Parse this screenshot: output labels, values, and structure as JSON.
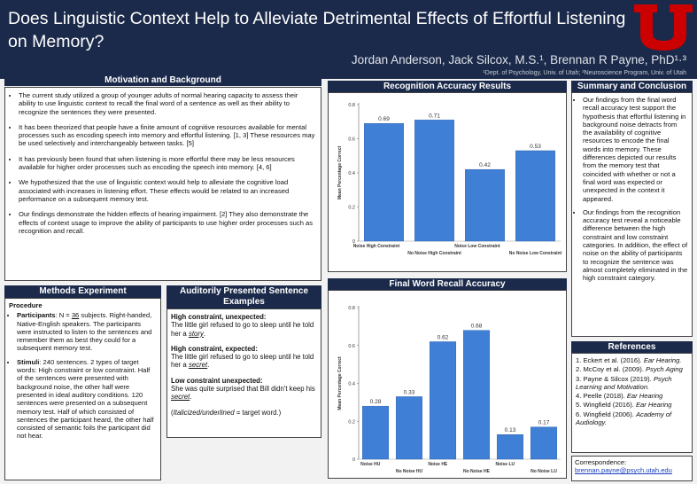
{
  "header": {
    "title": "Does Linguistic Context Help to Alleviate Detrimental Effects of Effortful Listening on Memory?",
    "authors": "Jordan Anderson, Jack Silcox, M.S.¹, Brennan R Payne, PhD¹·³",
    "affiliations": "¹Dept. of Psychology, Univ. of Utah;  ³Neuroscience Program, Univ. of Utah",
    "logo_color": "#cc0000"
  },
  "motivation": {
    "heading": "Motivation and Background",
    "items": [
      "The current study utilized a group of younger adults of normal hearing capacity to assess their ability to use linguistic context to recall the final word of a sentence as well as their ability to recognize the sentences they were presented.",
      "It has been theorized that people have a finite amount of cognitive resources available for mental processes such as encoding speech into memory and effortful listening. [1, 3] These resources may be used selectively and interchangeably between tasks. [5]",
      "It has previously been found that when listening is more effortful there may be less resources available for higher order processes such as encoding the speech into memory. [4, 6]",
      "We hypothesized that the use of linguistic context would help to alleviate the cognitive load associated with increases in listening effort. These effects would be related to an increased performance on a subsequent memory test.",
      "Our findings demonstrate the hidden effects of hearing impairment. [2] They also demonstrate the effects of context usage to improve the ability of participants to use higher order processes such as recognition and recall."
    ]
  },
  "methods": {
    "heading": "Methods Experiment",
    "procedure_label": "Procedure",
    "participants_label": "Participants",
    "participants_n_prefix": ": N = ",
    "participants_n": "36",
    "participants_text": " subjects. Right-handed, Native-English speakers. The participants were instructed to listen to the sentences and remember them as best they could for a subsequent memory test.",
    "stimuli_label": "Stimuli",
    "stimuli_text": ": 240 sentences. 2 types of target words: High constraint or low constraint. Half of the sentences were presented with background noise, the other half were presented in ideal auditory conditions. 120 sentences were presented on a subsequent memory test. Half of which consisted of sentences the participant heard, the other half consisted of semantic foils the participant did not hear."
  },
  "examples": {
    "heading": "Auditorily Presented Sentence Examples",
    "items": [
      {
        "label": "High constraint, unexpected:",
        "text": "The little girl refused to go to sleep until he told her a ",
        "target": "story",
        "end": "."
      },
      {
        "label": "High constraint, expected:",
        "text": "The little girl refused to go to sleep until he told her a ",
        "target": "secret",
        "end": "."
      },
      {
        "label": "Low constraint unexpected:",
        "text": "She was quite surprised that Bill didn't keep his ",
        "target": "secret",
        "end": "."
      }
    ],
    "note_prefix": "(",
    "note_emph": "Italicized/underlined",
    "note_suffix": " = target word.)"
  },
  "recognition": {
    "heading": "Recognition Accuracy Results"
  },
  "recall": {
    "heading": "Final Word Recall Accuracy"
  },
  "summary": {
    "heading": "Summary and Conclusion",
    "items": [
      "Our findings from the final word recall accuracy test support the hypothesis that effortful listening in background noise detracts from the availability of cognitive resources to encode the final words into memory. These differences depicted our results from the memory test that coincided with whether or not a final word was expected or unexpected in the context it appeared.",
      "Our findings from the recognition accuracy test reveal a noticeable difference between the high constraint and low constraint categories. In addition, the effect of noise on the ability of participants to recognize the sentence was almost completely eliminated in the high constraint category."
    ]
  },
  "references": {
    "heading": "References",
    "items": [
      {
        "num": "1.",
        "authors": "Eckert et al. (2016). ",
        "journal": "Ear Hearing."
      },
      {
        "num": "2.",
        "authors": "McCoy et al. (2009). ",
        "journal": "Psych Aging"
      },
      {
        "num": "3.",
        "authors": "Payne & Silcox (2019). ",
        "journal": "Psych Learning and Motivation."
      },
      {
        "num": "4.",
        "authors": "Peelle (2018). ",
        "journal": "Ear Hearing"
      },
      {
        "num": "5.",
        "authors": "Wingfield (2016). ",
        "journal": "Ear Hearing"
      },
      {
        "num": "6.",
        "authors": "Wingfield (2006). ",
        "journal": "Academy of Audiology."
      }
    ]
  },
  "correspondence": {
    "label": "Correspondence:",
    "email": "brennan.payne@psych.utah.edu"
  },
  "chart_data": [
    {
      "type": "bar",
      "ylabel": "Mean Percentage Correct",
      "categories": [
        "Noise High Constraint",
        "No Noise High Constraint",
        "Noise Low Constraint",
        "No Noise Low Constraint"
      ],
      "values": [
        0.69,
        0.71,
        0.42,
        0.53
      ],
      "value_labels": [
        "0.69",
        "0.71",
        "0.42",
        "0.53"
      ],
      "ylim": [
        0,
        0.8
      ],
      "yticks": [
        "0",
        "0.2",
        "0.4",
        "0.6",
        "0.8"
      ],
      "grid": false,
      "color": "#3f7fd6"
    },
    {
      "type": "bar",
      "ylabel": "Mean Percentage Correct",
      "categories": [
        "Noise HU",
        "No Noise HU",
        "Noise HE",
        "No Noise HE",
        "Noise LU",
        "No Noise LU"
      ],
      "values": [
        0.28,
        0.33,
        0.62,
        0.68,
        0.13,
        0.17
      ],
      "value_labels": [
        "0.28",
        "0.33",
        "0.62",
        "0.68",
        "0.13",
        "0.17"
      ],
      "ylim": [
        0,
        0.8
      ],
      "yticks": [
        "0",
        "0.2",
        "0.4",
        "0.6",
        "0.8"
      ],
      "grid": false,
      "color": "#3f7fd6"
    }
  ]
}
